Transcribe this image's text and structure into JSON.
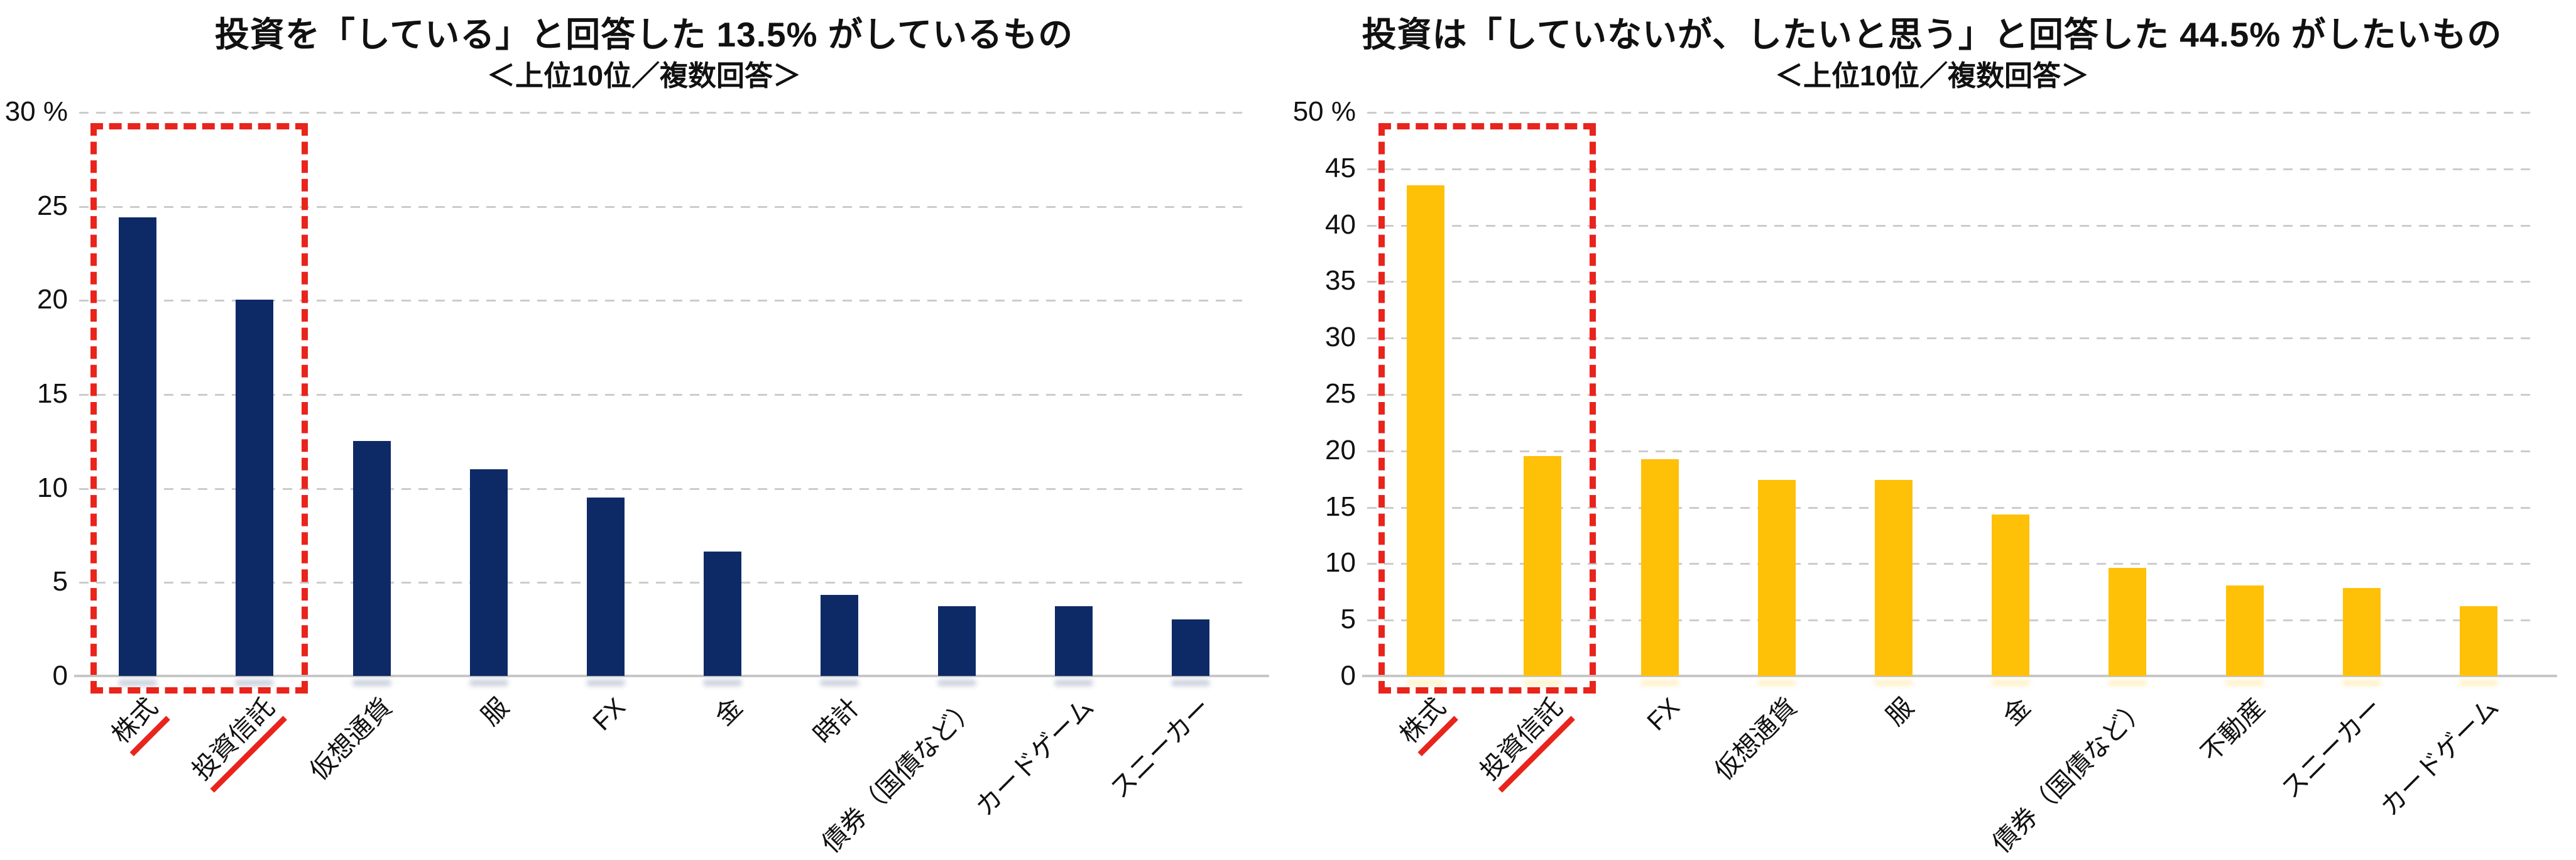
{
  "colors": {
    "navy": "#0e2a66",
    "gold": "#ffc008",
    "highlight_red": "#e8241c",
    "gridline": "#cccccc",
    "axis_line": "#c7c7c7",
    "text": "#111111"
  },
  "chart_data": [
    {
      "type": "bar",
      "title": "投資を「している」と回答した 13.5% がしているもの",
      "subtitle": "＜上位10位／複数回答＞",
      "categories": [
        "株式",
        "投資信託",
        "仮想通貨",
        "服",
        "FX",
        "金",
        "時計",
        "債券（国債など）",
        "カードゲーム",
        "スニーカー"
      ],
      "values": [
        24.4,
        20.0,
        12.5,
        11.0,
        9.5,
        6.6,
        4.3,
        3.7,
        3.7,
        3.0
      ],
      "xlabel": "",
      "ylabel": "",
      "y_unit": "%",
      "ylim": [
        0,
        30
      ],
      "ytick_step": 5,
      "grid": "dashed-horizontal",
      "legend": "none",
      "bar_color": "navy",
      "highlight_indexes": [
        0,
        1
      ],
      "highlight_box": true,
      "highlight_note": "red dashed box around top two bars, red underline on their labels"
    },
    {
      "type": "bar",
      "title": "投資は「していないが、したいと思う」と回答した 44.5% がしたいもの",
      "subtitle": "＜上位10位／複数回答＞",
      "categories": [
        "株式",
        "投資信託",
        "FX",
        "仮想通貨",
        "服",
        "金",
        "債券（国債など）",
        "不動産",
        "スニーカー",
        "カードゲーム"
      ],
      "values": [
        43.5,
        19.5,
        19.2,
        17.4,
        17.4,
        14.3,
        9.6,
        8.0,
        7.8,
        6.2
      ],
      "xlabel": "",
      "ylabel": "",
      "y_unit": "%",
      "ylim": [
        0,
        50
      ],
      "ytick_step": 5,
      "grid": "dashed-horizontal",
      "legend": "none",
      "bar_color": "gold",
      "highlight_indexes": [
        0,
        1
      ],
      "highlight_box": true,
      "highlight_note": "red dashed box around top two bars, red underline on their labels"
    }
  ]
}
